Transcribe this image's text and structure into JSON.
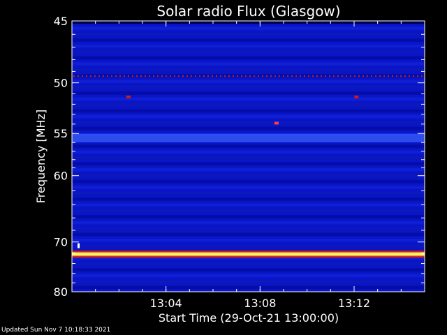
{
  "footer": {
    "updated_text": "Updated Sun Nov  7 10:18:33 2021"
  },
  "chart_data": {
    "type": "heatmap",
    "title": "Solar radio Flux (Glasgow)",
    "xlabel": "Start Time (29-Oct-21 13:00:00)",
    "ylabel": "Frequency [MHz]",
    "x_unit": "minutes",
    "xlim": [
      0,
      15
    ],
    "x_ticks": [
      {
        "value": 4,
        "label": "13:04"
      },
      {
        "value": 8,
        "label": "13:08"
      },
      {
        "value": 12,
        "label": "13:12"
      }
    ],
    "ylim": [
      45,
      80
    ],
    "y_reversed": true,
    "y_scale": "nonlinear (approx. reciprocal)",
    "y_ticks": [
      45,
      50,
      55,
      60,
      70,
      80
    ],
    "colormap": [
      "#000050",
      "#0a14c8",
      "#2846ff",
      "#c81e1e",
      "#ff8c00",
      "#ffff96"
    ],
    "background_color": "#0a14c8",
    "features": [
      {
        "type": "continuous-band",
        "frequency_mhz": 72.2,
        "intensity": "high",
        "color": "#ffff96"
      },
      {
        "type": "dotted-line",
        "frequency_mhz": 49.4,
        "intensity": "medium",
        "color": "#c81e1e"
      },
      {
        "type": "bright-band",
        "frequency_mhz": 55.5,
        "intensity": "low",
        "color": "#3c64ff"
      },
      {
        "type": "spot",
        "time_min": 8.7,
        "frequency_mhz": 53.9,
        "intensity": "medium",
        "color": "#ff4040"
      },
      {
        "type": "spot",
        "time_min": 2.4,
        "frequency_mhz": 51.3,
        "intensity": "low",
        "color": "#c81e1e"
      },
      {
        "type": "spot",
        "time_min": 12.1,
        "frequency_mhz": 51.3,
        "intensity": "low",
        "color": "#c81e1e"
      }
    ]
  }
}
